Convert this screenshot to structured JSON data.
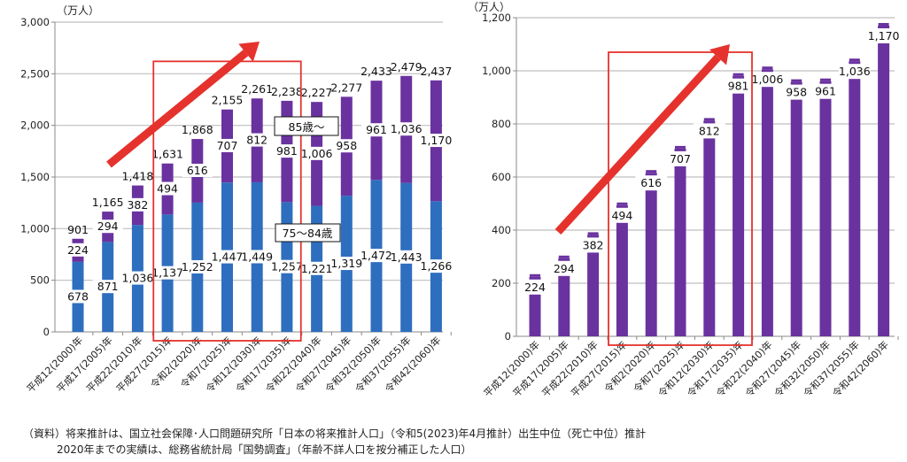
{
  "colors": {
    "age75_84": "#2E6EBF",
    "age85plus": "#6A329F",
    "grid": "#BFBFBF",
    "axis": "#888888",
    "highlight_box": "#E5322D",
    "arrow": "#E5322D"
  },
  "chart_data": [
    {
      "type": "bar",
      "stacked": true,
      "unit": "（万人）",
      "ylim": [
        0,
        3000
      ],
      "yticks": [
        0,
        500,
        1000,
        1500,
        2000,
        2500,
        3000
      ],
      "ytick_labels": [
        "0",
        "500",
        "1,000",
        "1,500",
        "2,000",
        "2,500",
        "3,000"
      ],
      "grid": true,
      "categories": [
        "平成12(2000)年",
        "平成17(2005)年",
        "平成22(2010)年",
        "平成27(2015)年",
        "令和2(2020)年",
        "令和7(2025)年",
        "令和12(2030)年",
        "令和17(2035)年",
        "令和22(2040)年",
        "令和27(2045)年",
        "令和32(2050)年",
        "令和37(2055)年",
        "令和42(2060)年"
      ],
      "series": [
        {
          "name": "75〜84歳",
          "values": [
            678,
            871,
            1036,
            1137,
            1252,
            1447,
            1449,
            1257,
            1221,
            1319,
            1472,
            1443,
            1266
          ],
          "labels": [
            "678",
            "871",
            "1,036",
            "1,137",
            "1,252",
            "1,447",
            "1,449",
            "1,257",
            "1,221",
            "1,319",
            "1,472",
            "1,443",
            "1,266"
          ]
        },
        {
          "name": "85歳〜",
          "values": [
            224,
            294,
            382,
            494,
            616,
            707,
            812,
            981,
            1006,
            958,
            961,
            1036,
            1170
          ],
          "labels": [
            "224",
            "294",
            "382",
            "494",
            "616",
            "707",
            "812",
            "981",
            "1,006",
            "958",
            "961",
            "1,036",
            "1,170"
          ]
        }
      ],
      "totals": [
        901,
        1165,
        1418,
        1631,
        1868,
        2155,
        2261,
        2238,
        2227,
        2277,
        2433,
        2479,
        2437
      ],
      "total_labels": [
        "901",
        "1,165",
        "1,418",
        "1,631",
        "1,868",
        "2,155",
        "2,261",
        "2,238",
        "2,227",
        "2,277",
        "2,433",
        "2,479",
        "2,437"
      ],
      "series_callouts": [
        "85歳〜",
        "75〜84歳"
      ],
      "highlight_range": [
        "平成27(2015)年",
        "令和17(2035)年"
      ],
      "annotation": "upward trend arrow"
    },
    {
      "type": "bar",
      "unit": "（万人）",
      "ylim": [
        0,
        1200
      ],
      "yticks": [
        0,
        200,
        400,
        600,
        800,
        1000,
        1200
      ],
      "ytick_labels": [
        "0",
        "200",
        "400",
        "600",
        "800",
        "1,000",
        "1,200"
      ],
      "grid": true,
      "categories": [
        "平成12(2000)年",
        "平成17(2005)年",
        "平成22(2010)年",
        "平成27(2015)年",
        "令和2(2020)年",
        "令和7(2025)年",
        "令和12(2030)年",
        "令和17(2035)年",
        "令和22(2040)年",
        "令和27(2045)年",
        "令和32(2050)年",
        "令和37(2055)年",
        "令和42(2060)年"
      ],
      "series": [
        {
          "name": "85歳〜",
          "values": [
            224,
            294,
            382,
            494,
            616,
            707,
            812,
            981,
            1006,
            958,
            961,
            1036,
            1170
          ],
          "labels": [
            "224",
            "294",
            "382",
            "494",
            "616",
            "707",
            "812",
            "981",
            "1,006",
            "958",
            "961",
            "1,036",
            "1,170"
          ]
        }
      ],
      "highlight_range": [
        "平成27(2015)年",
        "令和17(2035)年"
      ],
      "annotation": "upward trend arrow"
    }
  ],
  "footnote": {
    "line1": "（資料）将来推計は、国立社会保障･人口問題研究所「日本の将来推計人口」（令和5(2023)年4月推計）出生中位（死亡中位）推計",
    "line2": "2020年までの実績は、総務省統計局「国勢調査」（年齢不詳人口を按分補正した人口）"
  }
}
